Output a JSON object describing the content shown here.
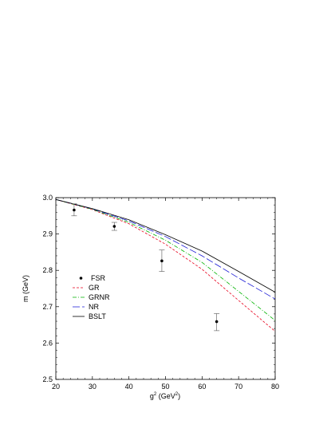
{
  "chart_data": {
    "type": "line",
    "xlabel": {
      "base": "g",
      "sup": "2",
      "paren_open": " (GeV",
      "paren_sup": "2",
      "paren_close": ")"
    },
    "ylabel": "m (GeV)",
    "xlim": [
      20,
      80
    ],
    "ylim": [
      2.5,
      3.0
    ],
    "x_ticks": [
      20,
      30,
      40,
      50,
      60,
      70,
      80
    ],
    "y_ticks": [
      "2.5",
      "2.6",
      "2.7",
      "2.8",
      "2.9",
      "3.0"
    ],
    "grid": false,
    "legend_position": "middle-left",
    "series": [
      {
        "name": "GR",
        "style": "short-dash",
        "color": "#e8001c",
        "x": [
          20,
          30,
          40,
          50,
          60,
          70,
          80
        ],
        "y": [
          2.995,
          2.967,
          2.928,
          2.872,
          2.803,
          2.717,
          2.632
        ]
      },
      {
        "name": "GRNR",
        "style": "dash-dot",
        "color": "#00b400",
        "x": [
          20,
          30,
          40,
          50,
          60,
          70,
          80
        ],
        "y": [
          2.995,
          2.968,
          2.932,
          2.883,
          2.822,
          2.742,
          2.662
        ]
      },
      {
        "name": "NR",
        "style": "long-dash",
        "color": "#1a1ad6",
        "x": [
          20,
          30,
          40,
          50,
          60,
          70,
          80
        ],
        "y": [
          2.995,
          2.969,
          2.936,
          2.893,
          2.84,
          2.779,
          2.721
        ]
      },
      {
        "name": "BSLT",
        "style": "solid",
        "color": "#000000",
        "x": [
          20,
          30,
          40,
          50,
          60,
          70,
          80
        ],
        "y": [
          2.995,
          2.97,
          2.939,
          2.898,
          2.853,
          2.797,
          2.74
        ]
      }
    ],
    "points": {
      "name": "FSR",
      "data": [
        {
          "x": 25,
          "y": 2.966,
          "err_lo": 2.95,
          "err_hi": 2.983
        },
        {
          "x": 36,
          "y": 2.921,
          "err_lo": 2.91,
          "err_hi": 2.932
        },
        {
          "x": 49,
          "y": 2.826,
          "err_lo": 2.797,
          "err_hi": 2.856
        },
        {
          "x": 64,
          "y": 2.659,
          "err_lo": 2.634,
          "err_hi": 2.681
        }
      ]
    }
  }
}
